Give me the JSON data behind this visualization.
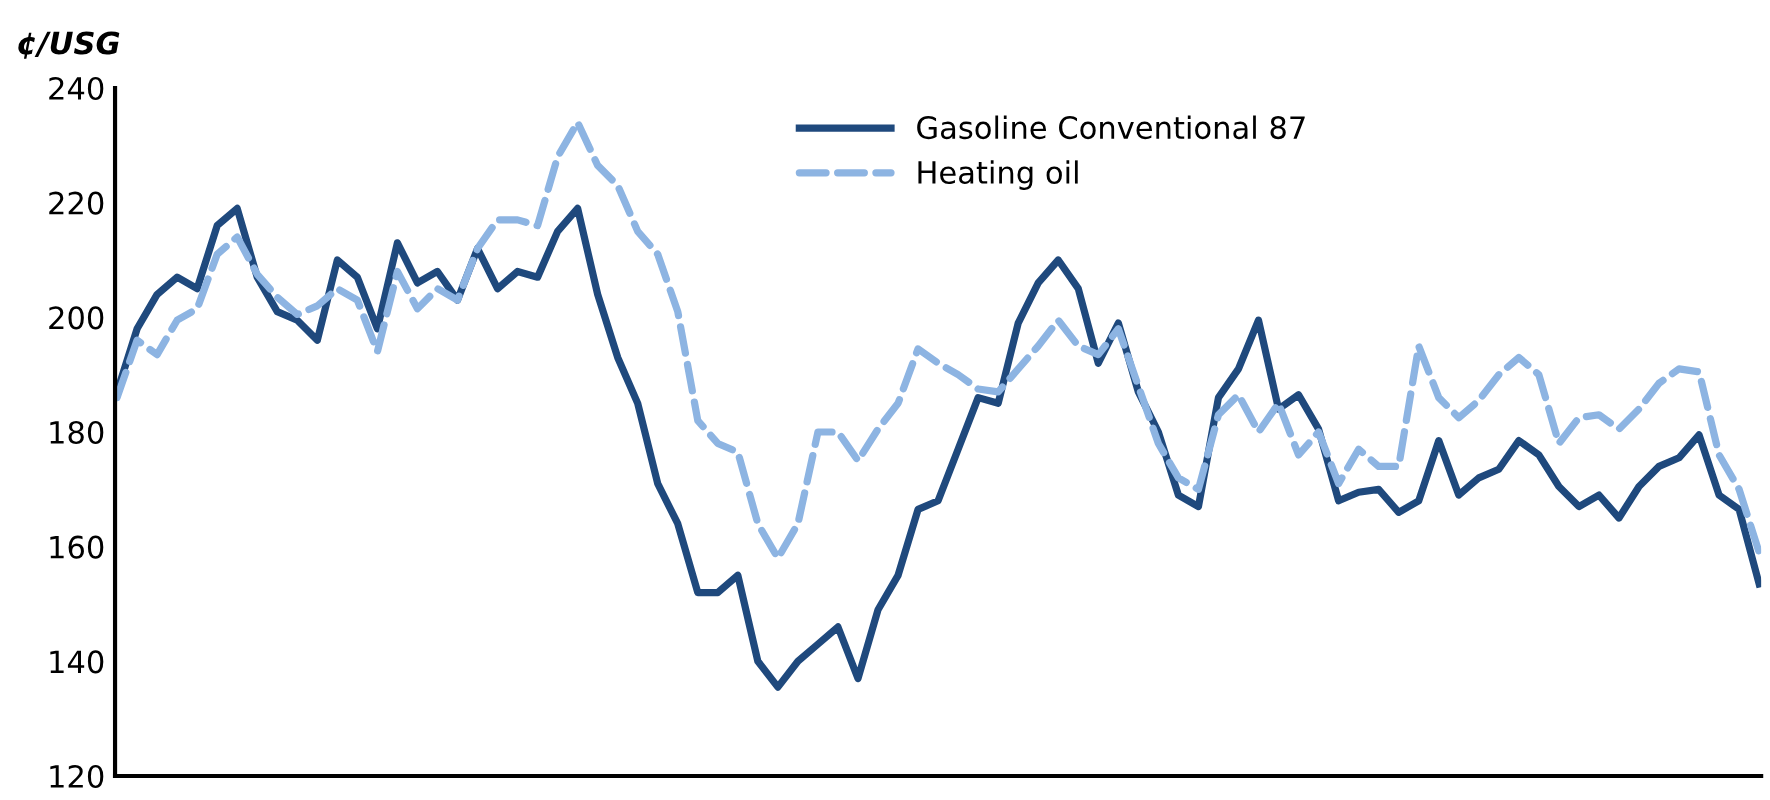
{
  "chart_data": {
    "type": "line",
    "ylabel": "¢/USG",
    "categories": [
      null,
      null,
      null,
      null,
      null,
      null,
      null,
      null,
      null,
      null,
      null,
      null,
      null,
      null,
      null,
      null,
      null,
      null,
      null,
      null,
      null,
      null,
      null,
      null,
      null,
      null,
      null,
      null,
      null,
      null,
      null,
      null,
      null,
      null,
      null,
      null,
      null,
      null,
      null,
      null,
      null,
      null,
      null,
      null,
      null,
      null,
      null,
      null,
      null,
      null,
      null,
      null,
      null,
      null,
      null,
      null,
      null,
      null,
      null,
      null,
      null,
      null,
      null,
      null,
      null,
      null,
      null,
      null,
      null,
      null,
      null,
      null,
      null,
      null,
      null,
      null,
      null,
      null,
      null,
      null,
      null,
      null,
      null
    ],
    "ylim": [
      120,
      240
    ],
    "yticks": [
      120,
      140,
      160,
      180,
      200,
      220,
      240
    ],
    "tick_labels": "y",
    "grid": false,
    "legend": "top",
    "series": [
      {
        "name": "Gasoline Conventional 87",
        "color": "#1f497d",
        "line_style": "solid",
        "values": [
          187,
          198,
          204,
          207,
          205,
          216,
          219,
          207,
          201,
          199.5,
          196,
          210,
          207,
          198,
          213,
          206,
          208,
          203,
          212,
          205,
          208,
          207,
          215,
          219,
          204,
          193,
          185,
          171,
          164,
          152,
          152,
          155,
          140,
          135.5,
          140,
          143,
          146,
          137,
          149,
          155,
          166.5,
          168,
          177,
          186,
          185,
          199,
          206,
          210,
          205,
          192,
          199,
          187,
          180,
          169,
          167,
          186,
          191,
          199.5,
          184,
          186.5,
          180.5,
          168,
          169.5,
          170,
          166,
          168,
          178.5,
          169,
          172,
          173.5,
          178.5,
          176,
          170.5,
          167,
          169,
          165,
          170.5,
          174,
          175.5,
          179.5,
          169,
          166.5,
          153.5
        ]
      },
      {
        "name": "Heating oil",
        "color": "#8db4e2",
        "line_style": "dashed",
        "values": [
          186,
          196,
          193.5,
          199.5,
          201.5,
          211,
          214,
          207.5,
          203.5,
          200.5,
          202,
          205,
          203,
          194,
          208,
          201.5,
          205,
          203,
          212,
          217,
          217,
          216,
          228,
          234,
          226.5,
          223,
          215,
          211,
          201,
          182,
          178,
          176.5,
          164,
          158,
          164,
          180,
          180,
          175,
          180.5,
          185,
          194.5,
          192,
          190,
          187.5,
          187,
          191,
          195,
          199.5,
          195,
          193.5,
          198,
          188,
          178,
          172,
          170,
          183,
          186.5,
          180,
          185,
          176,
          180,
          171,
          177,
          174,
          174,
          195,
          186,
          182.5,
          185.5,
          190,
          193,
          190,
          178,
          182.5,
          183,
          180.5,
          184,
          188.5,
          191,
          190.5,
          176,
          170,
          159
        ]
      }
    ]
  }
}
